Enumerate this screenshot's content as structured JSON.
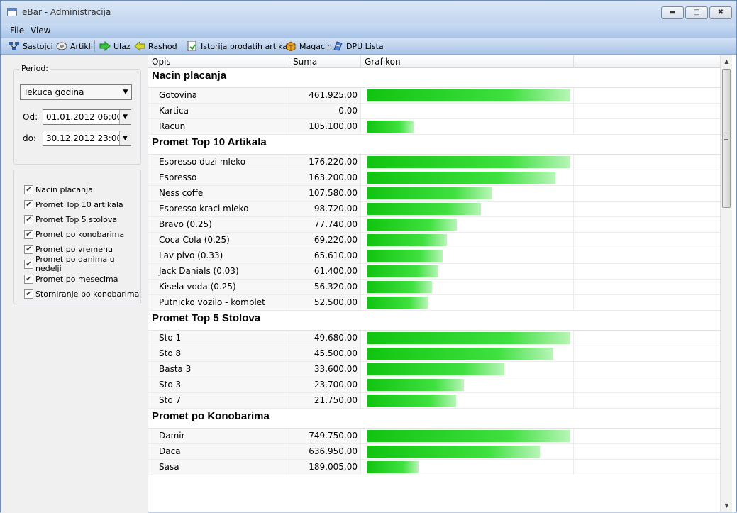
{
  "window": {
    "title": "eBar - Administracija"
  },
  "menu": [
    {
      "label": "File"
    },
    {
      "label": "View"
    }
  ],
  "toolbar": [
    {
      "label": "Sastojci",
      "icon": "components-icon"
    },
    {
      "label": "Artikli",
      "icon": "items-icon"
    },
    {
      "label": "Ulaz",
      "icon": "arrow-right-icon"
    },
    {
      "label": "Rashod",
      "icon": "arrow-left-icon"
    },
    {
      "label": "Istorija prodatih artikala",
      "icon": "history-icon"
    },
    {
      "label": "Magacin",
      "icon": "box-icon"
    },
    {
      "label": "DPU Lista",
      "icon": "list-icon"
    }
  ],
  "period": {
    "label": "Period:",
    "selected": "Tekuca godina",
    "od_label": "Od:",
    "od_value": "01.01.2012 06:00",
    "do_label": "do:",
    "do_value": "30.12.2012 23:00"
  },
  "filters": [
    {
      "label": "Nacin placanja",
      "checked": true
    },
    {
      "label": "Promet Top 10 artikala",
      "checked": true
    },
    {
      "label": "Promet Top 5 stolova",
      "checked": true
    },
    {
      "label": "Promet po konobarima",
      "checked": true
    },
    {
      "label": "Promet po vremenu",
      "checked": true
    },
    {
      "label": "Promet po danima u nedelji",
      "checked": true
    },
    {
      "label": "Promet po mesecima",
      "checked": true
    },
    {
      "label": "Storniranje po konobarima",
      "checked": true
    }
  ],
  "grid": {
    "columns": [
      "Opis",
      "Suma",
      "Grafikon"
    ],
    "groups": [
      {
        "title": "Nacin placanja",
        "rows": [
          {
            "opis": "Gotovina",
            "suma": "461.925,00",
            "value": 461925
          },
          {
            "opis": "Kartica",
            "suma": "0,00",
            "value": 0
          },
          {
            "opis": "Racun",
            "suma": "105.100,00",
            "value": 105100
          }
        ]
      },
      {
        "title": "Promet Top 10 Artikala",
        "rows": [
          {
            "opis": "Espresso duzi mleko",
            "suma": "176.220,00",
            "value": 176220
          },
          {
            "opis": "Espresso",
            "suma": "163.200,00",
            "value": 163200
          },
          {
            "opis": "Ness coffe",
            "suma": "107.580,00",
            "value": 107580
          },
          {
            "opis": "Espresso kraci mleko",
            "suma": "98.720,00",
            "value": 98720
          },
          {
            "opis": "Bravo (0.25)",
            "suma": "77.740,00",
            "value": 77740
          },
          {
            "opis": "Coca Cola (0.25)",
            "suma": "69.220,00",
            "value": 69220
          },
          {
            "opis": "Lav pivo  (0.33)",
            "suma": "65.610,00",
            "value": 65610
          },
          {
            "opis": "Jack Danials (0.03)",
            "suma": "61.400,00",
            "value": 61400
          },
          {
            "opis": "Kisela voda (0.25)",
            "suma": "56.320,00",
            "value": 56320
          },
          {
            "opis": "Putnicko vozilo - komplet",
            "suma": "52.500,00",
            "value": 52500
          }
        ]
      },
      {
        "title": "Promet Top 5 Stolova",
        "rows": [
          {
            "opis": "Sto 1",
            "suma": "49.680,00",
            "value": 49680
          },
          {
            "opis": "Sto 8",
            "suma": "45.500,00",
            "value": 45500
          },
          {
            "opis": "Basta 3",
            "suma": "33.600,00",
            "value": 33600
          },
          {
            "opis": "Sto 3",
            "suma": "23.700,00",
            "value": 23700
          },
          {
            "opis": "Sto 7",
            "suma": "21.750,00",
            "value": 21750
          }
        ]
      },
      {
        "title": "Promet po Konobarima",
        "rows": [
          {
            "opis": "Damir",
            "suma": "749.750,00",
            "value": 749750
          },
          {
            "opis": "Daca",
            "suma": "636.950,00",
            "value": 636950
          },
          {
            "opis": "Sasa",
            "suma": "189.005,00",
            "value": 189005
          }
        ]
      }
    ]
  },
  "colors": {
    "bar": "#22cc22",
    "accent": "#a9c5ea"
  }
}
